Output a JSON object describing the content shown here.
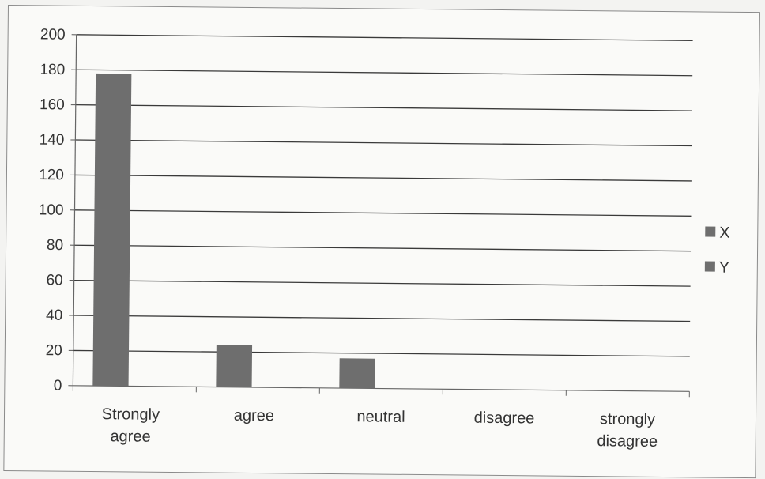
{
  "chart_data": {
    "type": "bar",
    "categories": [
      [
        "Strongly",
        "agree"
      ],
      [
        "agree"
      ],
      [
        "neutral"
      ],
      [
        "disagree"
      ],
      [
        "strongly",
        "disagree"
      ]
    ],
    "series": [
      {
        "name": "X",
        "values": [
          178,
          24,
          17,
          0,
          0
        ],
        "color": "#6e6e6e"
      },
      {
        "name": "Y",
        "values": [
          0,
          0,
          0,
          0,
          0
        ],
        "color": "#6e6e6e"
      }
    ],
    "title": "",
    "xlabel": "",
    "ylabel": "",
    "ylim": [
      0,
      200
    ],
    "yticks": [
      0,
      20,
      40,
      60,
      80,
      100,
      120,
      140,
      160,
      180,
      200
    ],
    "grid": true,
    "legend_position": "right"
  }
}
